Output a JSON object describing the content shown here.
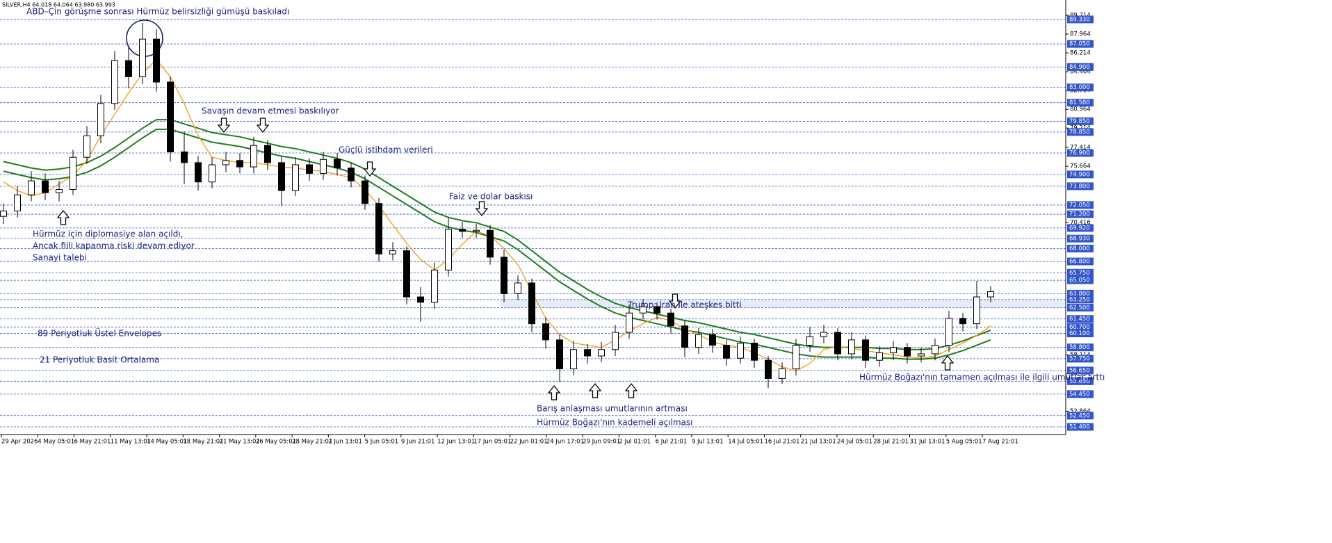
{
  "header": "SILVER,H4  64.018 64.064 63.980 63.993",
  "chart_data": {
    "type": "candlestick",
    "categories": [
      "29 Apr 2026",
      "4 May 05:01",
      "6 May 21:01",
      "11 May 13:01",
      "14 May 05:01",
      "18 May 21:01",
      "21 May 13:01",
      "26 May 05:01",
      "28 May 21:01",
      "2 Jun 13:01",
      "5 Jun 05:01",
      "9 Jun 21:01",
      "12 Jun 13:01",
      "17 Jun 05:01",
      "22 Jun 01:01",
      "24 Jun 17:01",
      "29 Jun 09:01",
      "2 Jul 01:01",
      "6 Jul 21:01",
      "9 Jul 13:01",
      "14 Jul 05:01",
      "16 Jul 21:01",
      "21 Jul 13:01",
      "24 Jul 05:01",
      "28 Jul 21:01",
      "31 Jul 13:01",
      "5 Aug 05:01",
      "7 Aug 21:01"
    ],
    "candles": {
      "up_color": "#ffffff",
      "down_color": "#000000",
      "open": [
        71.0,
        71.5,
        73.0,
        74.3,
        73.2,
        73.5,
        76.5,
        78.5,
        81.5,
        85.5,
        84.0,
        87.5,
        83.5,
        77.0,
        76.0,
        74.2,
        75.8,
        76.2,
        75.6,
        77.6,
        76.0,
        73.4,
        75.8,
        75.0,
        76.3,
        75.5,
        74.3,
        72.2,
        67.5,
        67.8,
        63.5,
        63.0,
        66.0,
        69.8,
        69.6,
        69.7,
        67.2,
        63.8,
        64.8,
        61.0,
        59.5,
        56.8,
        58.6,
        58.0,
        58.6,
        60.2,
        62.0,
        62.6,
        62.0,
        60.8,
        58.8,
        60.0,
        59.0,
        57.8,
        59.2,
        57.6,
        55.9,
        56.8,
        59.0,
        59.8,
        60.2,
        58.2,
        59.5,
        57.6,
        58.3,
        58.8,
        58.0,
        58.2,
        59.0,
        61.5,
        61.0,
        63.5
      ],
      "high": [
        72.2,
        73.8,
        75.2,
        75.0,
        74.3,
        77.2,
        79.4,
        82.3,
        86.4,
        86.8,
        89.0,
        88.4,
        84.0,
        78.9,
        76.6,
        76.5,
        77.0,
        76.9,
        78.4,
        78.1,
        76.6,
        76.5,
        76.4,
        77.0,
        76.9,
        76.0,
        74.8,
        72.7,
        68.6,
        68.2,
        64.4,
        66.7,
        70.9,
        70.5,
        70.3,
        70.2,
        67.9,
        65.5,
        65.2,
        61.6,
        60.0,
        59.4,
        59.1,
        59.3,
        60.9,
        62.8,
        63.3,
        63.0,
        62.4,
        61.3,
        60.6,
        60.5,
        59.5,
        59.8,
        59.6,
        58.0,
        57.4,
        59.6,
        60.7,
        60.9,
        60.6,
        60.2,
        59.9,
        58.9,
        59.4,
        59.2,
        58.8,
        59.6,
        62.2,
        62.0,
        65.0,
        64.5
      ],
      "low": [
        70.3,
        70.9,
        72.4,
        72.5,
        72.4,
        73.0,
        75.9,
        77.8,
        80.9,
        82.9,
        83.3,
        82.6,
        76.1,
        74.0,
        73.4,
        73.6,
        75.1,
        75.0,
        75.0,
        75.3,
        72.0,
        72.9,
        74.3,
        74.4,
        74.8,
        73.7,
        71.6,
        66.8,
        66.9,
        62.8,
        61.2,
        62.4,
        65.4,
        69.0,
        69.0,
        66.5,
        63.0,
        63.2,
        60.2,
        58.7,
        55.6,
        56.2,
        57.3,
        57.4,
        58.0,
        59.6,
        61.4,
        61.4,
        60.1,
        57.9,
        58.2,
        58.3,
        57.1,
        57.3,
        56.9,
        55.0,
        55.4,
        56.2,
        58.4,
        59.2,
        57.6,
        57.7,
        56.9,
        57.0,
        57.6,
        57.3,
        57.4,
        57.6,
        58.4,
        60.3,
        60.5,
        63.0
      ],
      "close": [
        71.5,
        73.0,
        74.3,
        73.2,
        73.5,
        76.5,
        78.5,
        81.5,
        85.5,
        84.0,
        87.5,
        83.5,
        77.0,
        76.0,
        74.2,
        75.8,
        76.2,
        75.6,
        77.6,
        76.0,
        73.4,
        75.8,
        75.0,
        76.3,
        75.5,
        74.3,
        72.2,
        67.5,
        67.8,
        63.5,
        63.0,
        66.0,
        69.8,
        69.6,
        69.7,
        67.2,
        63.8,
        64.8,
        61.0,
        59.5,
        56.8,
        58.6,
        58.0,
        58.6,
        60.2,
        62.0,
        62.6,
        62.0,
        60.8,
        58.8,
        60.0,
        59.0,
        57.8,
        59.2,
        57.6,
        55.9,
        56.8,
        59.0,
        59.8,
        60.2,
        58.2,
        59.5,
        57.6,
        58.3,
        58.8,
        58.0,
        58.2,
        59.0,
        61.5,
        61.0,
        63.5,
        63.993
      ]
    },
    "sma": {
      "name": "21 Periyotluk Basit Ortalama",
      "color": "#f5a020",
      "values": [
        74.2,
        73.4,
        72.9,
        73.2,
        74.0,
        74.8,
        76.2,
        78.5,
        80.5,
        82.5,
        84.3,
        85.6,
        84.0,
        81.5,
        78.5,
        76.5,
        76.2,
        76.0,
        76.0,
        75.8,
        75.6,
        75.5,
        75.3,
        75.2,
        74.9,
        74.6,
        73.5,
        72.0,
        70.2,
        68.5,
        67.0,
        66.0,
        67.0,
        68.4,
        69.6,
        69.2,
        68.0,
        66.5,
        64.0,
        61.5,
        60.0,
        59.2,
        59.0,
        58.8,
        59.5,
        60.3,
        61.0,
        61.6,
        61.3,
        60.5,
        60.0,
        59.3,
        59.0,
        58.8,
        58.3,
        57.7,
        57.0,
        56.6,
        57.3,
        58.6,
        58.9,
        58.7,
        58.5,
        58.3,
        58.1,
        57.9,
        57.8,
        58.0,
        58.6,
        59.2,
        59.9,
        60.8
      ]
    },
    "envelopes": {
      "name": "89 Periyotluk Üstel Envelopes",
      "color": "#1e7d1e",
      "upper": [
        76.1,
        75.8,
        75.5,
        75.3,
        75.4,
        75.6,
        76.0,
        76.6,
        77.4,
        78.3,
        79.2,
        80.0,
        80.0,
        79.6,
        79.2,
        78.8,
        78.6,
        78.4,
        78.1,
        77.8,
        77.5,
        77.3,
        77.0,
        76.7,
        76.4,
        76.0,
        75.4,
        74.6,
        73.8,
        73.0,
        72.2,
        71.4,
        70.9,
        70.6,
        70.4,
        70.0,
        69.6,
        68.8,
        67.8,
        66.8,
        65.8,
        65.0,
        64.2,
        63.5,
        62.9,
        62.5,
        62.2,
        61.9,
        61.6,
        61.3,
        61.1,
        60.8,
        60.5,
        60.2,
        60.0,
        59.7,
        59.4,
        59.1,
        58.9,
        58.8,
        58.8,
        58.8,
        58.8,
        58.7,
        58.7,
        58.6,
        58.6,
        58.7,
        59.0,
        59.4,
        59.9,
        60.4
      ],
      "lower": [
        75.2,
        74.9,
        74.6,
        74.4,
        74.5,
        74.7,
        75.1,
        75.7,
        76.5,
        77.4,
        78.3,
        79.1,
        79.1,
        78.7,
        78.3,
        77.9,
        77.7,
        77.5,
        77.2,
        76.9,
        76.6,
        76.4,
        76.1,
        75.8,
        75.5,
        75.1,
        74.5,
        73.7,
        72.9,
        72.1,
        71.3,
        70.5,
        70.0,
        69.7,
        69.5,
        69.1,
        68.7,
        67.9,
        66.9,
        65.9,
        64.9,
        64.1,
        63.3,
        62.6,
        62.0,
        61.6,
        61.3,
        61.0,
        60.7,
        60.4,
        60.2,
        59.9,
        59.6,
        59.3,
        59.1,
        58.8,
        58.5,
        58.2,
        58.0,
        57.9,
        57.9,
        57.9,
        57.9,
        57.8,
        57.8,
        57.7,
        57.7,
        57.8,
        58.1,
        58.5,
        59.0,
        59.5
      ]
    },
    "ylim": [
      50.688,
      91.138
    ],
    "yticks": [
      89.714,
      87.964,
      86.214,
      84.464,
      82.714,
      80.964,
      79.214,
      77.414,
      75.664,
      70.416,
      58.114,
      56.364,
      52.864
    ],
    "level_color": "#3355cc",
    "levels": [
      {
        "value": 89.33,
        "label": "89.330"
      },
      {
        "value": 87.05,
        "label": "87.050"
      },
      {
        "value": 84.9,
        "label": "84.900"
      },
      {
        "value": 83.0,
        "label": "83.000"
      },
      {
        "value": 81.58,
        "label": "81.580"
      },
      {
        "value": 79.85,
        "label": "79.850"
      },
      {
        "value": 78.85,
        "label": "78.850"
      },
      {
        "value": 76.9,
        "label": "76.900"
      },
      {
        "value": 74.9,
        "label": "74.900"
      },
      {
        "value": 73.8,
        "label": "73.800"
      },
      {
        "value": 72.05,
        "label": "72.050"
      },
      {
        "value": 71.2,
        "label": "71.200"
      },
      {
        "value": 69.92,
        "label": "69.920"
      },
      {
        "value": 68.93,
        "label": "68.930"
      },
      {
        "value": 68.0,
        "label": "68.000"
      },
      {
        "value": 66.8,
        "label": "66.800"
      },
      {
        "value": 65.75,
        "label": "65.750"
      },
      {
        "value": 65.05,
        "label": "65.050"
      },
      {
        "value": 63.8,
        "label": "63.800"
      },
      {
        "value": 63.25,
        "label": "63.250"
      },
      {
        "value": 62.5,
        "label": "62.500"
      },
      {
        "value": 61.45,
        "label": "61.450"
      },
      {
        "value": 60.7,
        "label": "60.700"
      },
      {
        "value": 60.1,
        "label": "60.100"
      },
      {
        "value": 58.8,
        "label": "58.800"
      },
      {
        "value": 57.75,
        "label": "57.750"
      },
      {
        "value": 56.65,
        "label": "56.650"
      },
      {
        "value": 55.65,
        "label": "55.650"
      },
      {
        "value": 54.45,
        "label": "54.450"
      },
      {
        "value": 52.45,
        "label": "52.450"
      },
      {
        "value": 51.4,
        "label": "51.400"
      }
    ],
    "annotations": [
      "ABD–Çin görüşme sonrası Hürmüz belirsizliği gümüşü baskıladı",
      "Savaşın devam etmesi baskılıyor",
      "Güçlü istihdam verileri",
      "Faiz ve dolar baskısı",
      "Hürmüz için diplomasiye alan açıldı,",
      "Ancak fiili kapanma riski devam ediyor",
      "Sanayi talebi",
      "Trump: İran ile ateşkes bitti",
      "Hürmüz Boğazı'nın tamamen açılması ile ilgili umutlar arttı",
      "Barış anlaşması umutlarının artması",
      "Hürmüz Boğazı'nın kademeli açılması"
    ]
  }
}
